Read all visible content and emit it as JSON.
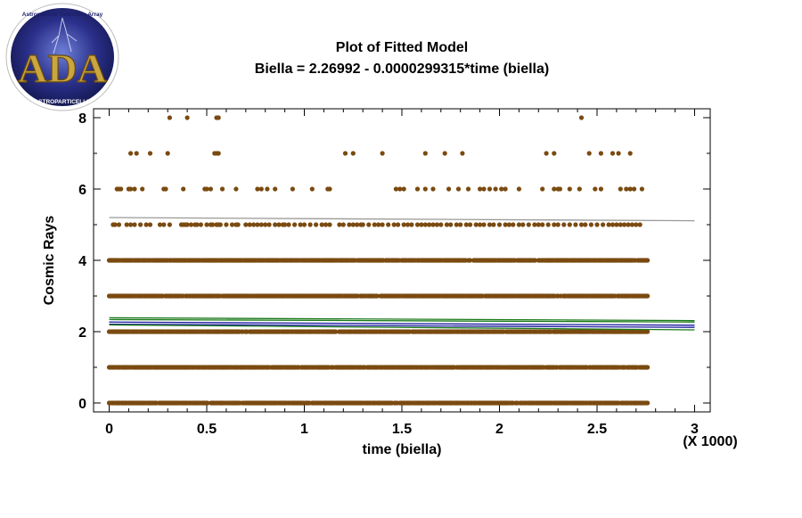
{
  "logo": {
    "text": "ADA",
    "ring_text": "Astroparticle Detectors Array",
    "bottom_text": "ASTROPARTICELLE"
  },
  "colors": {
    "points": "#7a4a10",
    "fit_line": "#999999",
    "conf_limits": "#1a1aa0",
    "pred_limits": "#1a7a1a",
    "frame": "#000000"
  },
  "chart_data": {
    "type": "scatter",
    "title": "Plot of Fitted Model",
    "subtitle": "Biella = 2.26992 - 0.0000299315*time (biella)",
    "xlabel": "time (biella)",
    "ylabel": "Cosmic Rays",
    "x_multiplier_label": "(X 1000)",
    "xlim": [
      -0.08,
      3.08
    ],
    "ylim": [
      -0.25,
      8.25
    ],
    "x_ticks": [
      0,
      0.5,
      1,
      1.5,
      2,
      2.5,
      3
    ],
    "x_tick_labels": [
      "0",
      "0.5",
      "1",
      "1.5",
      "2",
      "2.5",
      "3"
    ],
    "y_ticks": [
      0,
      2,
      4,
      6,
      8
    ],
    "y_tick_labels": [
      "0",
      "2",
      "4",
      "6",
      "8"
    ],
    "grid": false,
    "fitted_line": {
      "intercept": 2.26992,
      "slope_per_unit": -2.99315e-05,
      "x_scale": 1000
    },
    "points_by_level": [
      {
        "y": 0,
        "x_range": [
          0,
          2.76
        ],
        "density": "dense"
      },
      {
        "y": 1,
        "x_range": [
          0,
          2.76
        ],
        "density": "dense"
      },
      {
        "y": 2,
        "x_range": [
          0,
          2.76
        ],
        "density": "dense"
      },
      {
        "y": 3,
        "x_range": [
          0,
          2.76
        ],
        "density": "dense"
      },
      {
        "y": 4,
        "x_range": [
          0,
          2.76
        ],
        "density": "dense"
      },
      {
        "y": 5,
        "x": [
          0.02,
          0.03,
          0.05,
          0.09,
          0.11,
          0.13,
          0.16,
          0.19,
          0.21,
          0.26,
          0.28,
          0.31,
          0.37,
          0.38,
          0.39,
          0.4,
          0.42,
          0.44,
          0.45,
          0.47,
          0.5,
          0.52,
          0.53,
          0.55,
          0.56,
          0.57,
          0.6,
          0.63,
          0.65,
          0.66,
          0.7,
          0.72,
          0.74,
          0.76,
          0.78,
          0.8,
          0.82,
          0.85,
          0.87,
          0.89,
          0.9,
          0.92,
          0.95,
          0.98,
          1.0,
          1.03,
          1.06,
          1.09,
          1.11,
          1.13,
          1.18,
          1.2,
          1.23,
          1.25,
          1.27,
          1.29,
          1.3,
          1.33,
          1.36,
          1.38,
          1.4,
          1.43,
          1.46,
          1.48,
          1.51,
          1.53,
          1.55,
          1.58,
          1.6,
          1.62,
          1.64,
          1.66,
          1.68,
          1.7,
          1.73,
          1.75,
          1.78,
          1.8,
          1.83,
          1.85,
          1.88,
          1.9,
          1.92,
          1.95,
          1.97,
          2.0,
          2.03,
          2.05,
          2.07,
          2.1,
          2.12,
          2.15,
          2.18,
          2.2,
          2.22,
          2.25,
          2.28,
          2.3,
          2.33,
          2.36,
          2.39,
          2.42,
          2.44,
          2.47,
          2.5,
          2.53,
          2.56,
          2.58,
          2.6,
          2.62,
          2.64,
          2.66,
          2.68,
          2.7,
          2.72
        ]
      },
      {
        "y": 6,
        "x": [
          0.04,
          0.05,
          0.06,
          0.1,
          0.11,
          0.13,
          0.17,
          0.28,
          0.29,
          0.38,
          0.49,
          0.5,
          0.52,
          0.58,
          0.65,
          0.76,
          0.78,
          0.81,
          0.85,
          0.94,
          1.04,
          1.12,
          1.13,
          1.47,
          1.49,
          1.51,
          1.58,
          1.62,
          1.66,
          1.74,
          1.79,
          1.84,
          1.9,
          1.92,
          1.95,
          1.98,
          2.01,
          2.03,
          2.1,
          2.22,
          2.28,
          2.3,
          2.31,
          2.36,
          2.41,
          2.49,
          2.52,
          2.62,
          2.65,
          2.67,
          2.69,
          2.73
        ]
      },
      {
        "y": 7,
        "x": [
          0.11,
          0.14,
          0.21,
          0.3,
          0.54,
          0.55,
          0.56,
          1.21,
          1.25,
          1.4,
          1.62,
          1.72,
          1.81,
          2.24,
          2.28,
          2.46,
          2.52,
          2.58,
          2.61,
          2.67
        ]
      },
      {
        "y": 8,
        "x": [
          0.31,
          0.4,
          0.55,
          0.56,
          2.42
        ]
      }
    ],
    "series": [
      {
        "values_ref": "points_by_level"
      },
      {
        "y_start": 2.27,
        "y_end": 2.18
      },
      {
        "y_start": 2.34,
        "y_end": 2.27
      },
      {
        "y_start": 2.21,
        "y_end": 2.12
      },
      {
        "y_start": 2.39,
        "y_end": 2.31
      },
      {
        "y_start": 2.19,
        "y_end": 2.05
      },
      {
        "y_start": 5.2,
        "y_end": 5.11
      }
    ]
  }
}
